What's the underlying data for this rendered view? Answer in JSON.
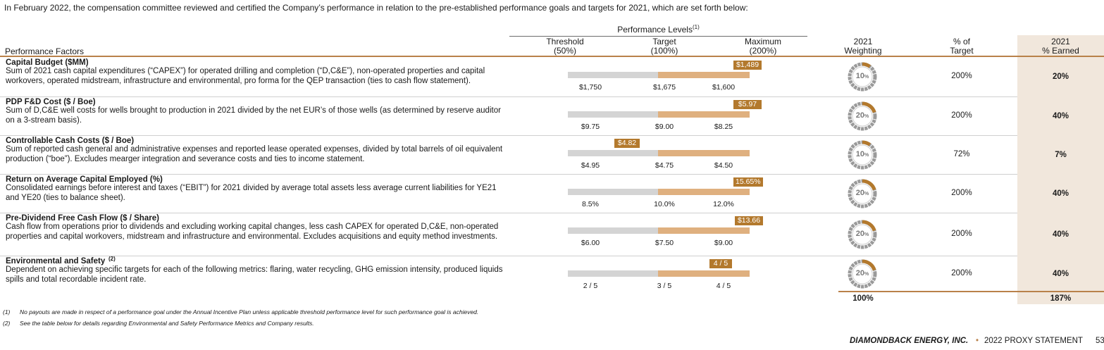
{
  "intro": "In February 2022, the compensation committee reviewed and certified the Company’s performance in relation to the pre-established performance goals and targets for 2021, which are set forth below:",
  "header": {
    "performance_levels": "Performance Levels",
    "performance_levels_note": "(1)",
    "factors": "Performance Factors",
    "threshold": "Threshold",
    "threshold_pct": "(50%)",
    "target": "Target",
    "target_pct": "(100%)",
    "maximum": "Maximum",
    "maximum_pct": "(200%)",
    "weighting_1": "2021",
    "weighting_2": "Weighting",
    "pct_target_1": "% of",
    "pct_target_2": "Target",
    "earned_1": "2021",
    "earned_2": "% Earned"
  },
  "rows": [
    {
      "title": "Capital Budget ($MM)",
      "title_note": "",
      "description": "Sum of 2021 cash capital expenditures (“CAPEX”) for operated drilling and completion (“D,C&E”), non-operated properties and capital workovers, operated midstream, infrastructure and environmental, pro forma for the QEP transaction (ties to cash flow statement).",
      "threshold": "$1,750",
      "target": "$1,675",
      "maximum": "$1,600",
      "actual": "$1,489",
      "weighting": "10",
      "weighting_fraction": 0.1,
      "pct_of_target": "200%",
      "pct_earned": "20%"
    },
    {
      "title": "PDP F&D Cost ($ / Boe)",
      "title_note": "",
      "description": "Sum of D,C&E well costs for wells brought to production in 2021 divided by the net EUR’s of those wells (as determined by reserve auditor on a 3-stream basis).",
      "threshold": "$9.75",
      "target": "$9.00",
      "maximum": "$8.25",
      "actual": "$5.97",
      "weighting": "20",
      "weighting_fraction": 0.2,
      "pct_of_target": "200%",
      "pct_earned": "40%"
    },
    {
      "title": "Controllable Cash Costs ($ / Boe)",
      "title_note": "",
      "description": "Sum of reported cash general and administrative expenses and reported lease operated expenses, divided by total barrels of oil equivalent production (“boe”). Excludes mearger integration and severance costs and ties to income statement.",
      "threshold": "$4.95",
      "target": "$4.75",
      "maximum": "$4.50",
      "actual": "$4.82",
      "weighting": "10",
      "weighting_fraction": 0.1,
      "pct_of_target": "72%",
      "pct_earned": "7%"
    },
    {
      "title": "Return on Average Capital Employed (%)",
      "title_note": "",
      "description": "Consolidated earnings before interest and taxes (“EBIT”) for 2021 divided by average total assets less average current liabilities for YE21 and YE20 (ties to balance sheet).",
      "threshold": "8.5%",
      "target": "10.0%",
      "maximum": "12.0%",
      "actual": "15.65%",
      "weighting": "20",
      "weighting_fraction": 0.2,
      "pct_of_target": "200%",
      "pct_earned": "40%"
    },
    {
      "title": "Pre-Dividend Free Cash Flow ($ / Share)",
      "title_note": "",
      "description": "Cash flow from operations prior to dividends and excluding working capital changes, less cash CAPEX for operated D,C&E, non-operated properties and capital workovers, midstream and infrastructure and environmental. Excludes acquisitions and equity method investments.",
      "threshold": "$6.00",
      "target": "$7.50",
      "maximum": "$9.00",
      "actual": "$13.66",
      "weighting": "20",
      "weighting_fraction": 0.2,
      "pct_of_target": "200%",
      "pct_earned": "40%"
    },
    {
      "title": "Environmental and Safety",
      "title_note": "(2)",
      "description": "Dependent on achieving specific targets for each of the following metrics: flaring, water recycling, GHG emission intensity, produced liquids spills and total recordable incident rate.",
      "threshold": "2 / 5",
      "target": "3 / 5",
      "maximum": "4 / 5",
      "actual": "4 / 5",
      "weighting": "20",
      "weighting_fraction": 0.2,
      "pct_of_target": "200%",
      "pct_earned": "40%"
    }
  ],
  "weighting_unit": "%",
  "totals": {
    "weighting": "100%",
    "earned": "187%"
  },
  "footnotes": [
    {
      "num": "(1)",
      "text": "No payouts are made in respect of a performance goal under the Annual Incentive Plan unless applicable threshold performance level for such performance goal is achieved."
    },
    {
      "num": "(2)",
      "text": "See the table below for details regarding Environmental and Safety Performance Metrics and Company results."
    }
  ],
  "footer": {
    "company": "DIAMONDBACK ENERGY, INC.",
    "bullet": "•",
    "document": "2022 PROXY STATEMENT",
    "page": "53"
  },
  "colors": {
    "accent": "#b9814a",
    "marker": "#b3792d",
    "bar_tan": "#dfb07f",
    "bar_gray": "#d4d4d4",
    "earned_bg": "#f1e7dc"
  }
}
